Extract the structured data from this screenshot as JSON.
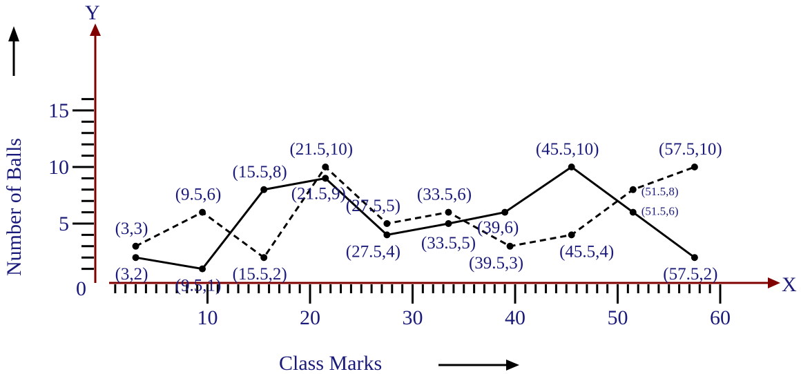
{
  "chart_data": {
    "type": "line",
    "xlabel": "Class Marks",
    "ylabel": "Number of Balls",
    "x_axis_letter": "X",
    "y_axis_letter": "Y",
    "origin_label": "0",
    "xlim": [
      0,
      65
    ],
    "ylim": [
      0,
      17
    ],
    "x_ticks": [
      10,
      20,
      30,
      40,
      50,
      60
    ],
    "y_ticks": [
      5,
      10,
      15
    ],
    "grid": false,
    "colors": {
      "axis": "#800000",
      "text": "#1a1a7a",
      "series": "#000000"
    },
    "series": [
      {
        "style": "solid",
        "points": [
          {
            "x": 3,
            "y": 2,
            "label": "(3,2)"
          },
          {
            "x": 9.5,
            "y": 1,
            "label": "(9.5,1)"
          },
          {
            "x": 15.5,
            "y": 8,
            "label": "(15.5,8)"
          },
          {
            "x": 21.5,
            "y": 9,
            "label": "(21.5,9)"
          },
          {
            "x": 27.5,
            "y": 4,
            "label": "(27.5,4)"
          },
          {
            "x": 33.5,
            "y": 5,
            "label": "(33.5,5)"
          },
          {
            "x": 39,
            "y": 6,
            "label": "(39,6)"
          },
          {
            "x": 45.5,
            "y": 10,
            "label": "(45.5,10)"
          },
          {
            "x": 51.5,
            "y": 6,
            "label": "(51.5,6)"
          },
          {
            "x": 57.5,
            "y": 2,
            "label": "(57.5,2)"
          }
        ]
      },
      {
        "style": "dashed",
        "points": [
          {
            "x": 3,
            "y": 3,
            "label": "(3,3)"
          },
          {
            "x": 9.5,
            "y": 6,
            "label": "(9.5,6)"
          },
          {
            "x": 15.5,
            "y": 2,
            "label": "(15.5,2)"
          },
          {
            "x": 21.5,
            "y": 10,
            "label": "(21.5,10)"
          },
          {
            "x": 27.5,
            "y": 5,
            "label": "(27.5,5)"
          },
          {
            "x": 33.5,
            "y": 6,
            "label": "(33.5,6)"
          },
          {
            "x": 39.5,
            "y": 3,
            "label": "(39.5,3)"
          },
          {
            "x": 45.5,
            "y": 4,
            "label": "(45.5,4)"
          },
          {
            "x": 51.5,
            "y": 8,
            "label": "(51.5,8)"
          },
          {
            "x": 57.5,
            "y": 10,
            "label": "(57.5,10)"
          }
        ]
      }
    ]
  }
}
